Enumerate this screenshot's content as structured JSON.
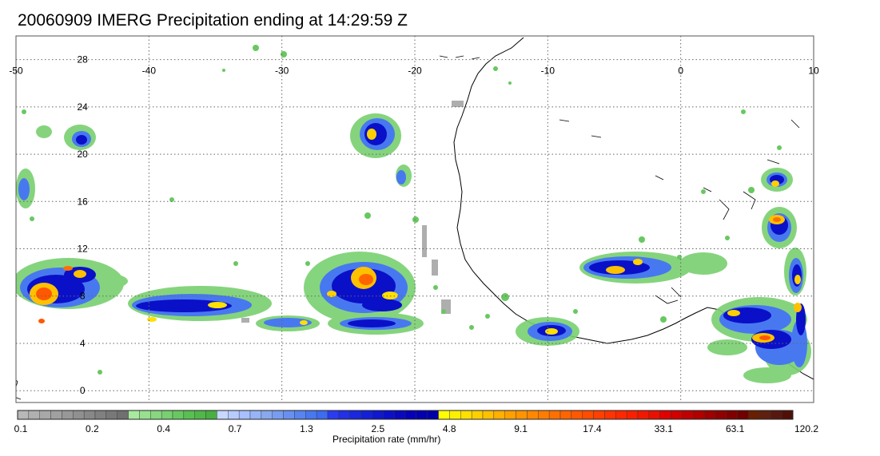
{
  "title": "20060909 IMERG Precipitation ending at 14:29:59 Z",
  "map": {
    "lon_range": [
      -50,
      10
    ],
    "lat_range": [
      -1,
      30
    ],
    "lon_ticks": [
      "-50",
      "-40",
      "-30",
      "-20",
      "-10",
      "0",
      "10"
    ],
    "lat_ticks": [
      "28",
      "24",
      "20",
      "16",
      "12",
      "8",
      "4",
      "0"
    ],
    "grid": "dotted",
    "coastline": "West Africa"
  },
  "colorbar": {
    "title": "Precipitation rate (mm/hr)",
    "labels": [
      "0.1",
      "0.2",
      "0.4",
      "0.7",
      "1.3",
      "2.5",
      "4.8",
      "9.1",
      "17.4",
      "33.1",
      "63.1",
      "120.2"
    ],
    "colors": [
      "#b8b8b8",
      "#b0b0b0",
      "#a8a8a8",
      "#a0a0a0",
      "#989898",
      "#909090",
      "#888888",
      "#808080",
      "#787878",
      "#707070",
      "#a8e8a0",
      "#98e090",
      "#88d880",
      "#78d070",
      "#68c860",
      "#58c050",
      "#50b848",
      "#48b040",
      "#c8d8ff",
      "#b8ccff",
      "#a8c0ff",
      "#98b4f8",
      "#88a8f0",
      "#789cf0",
      "#6890f0",
      "#5884f0",
      "#4878f0",
      "#3c6cf0",
      "#2a3cf0",
      "#2230e8",
      "#1a28e0",
      "#1420d8",
      "#0e18d0",
      "#0a10c8",
      "#0808c0",
      "#0600b8",
      "#0400b0",
      "#0000a8",
      "#ffff00",
      "#fff000",
      "#ffe000",
      "#ffd000",
      "#ffc000",
      "#ffb000",
      "#ffa000",
      "#ff9400",
      "#ff8800",
      "#ff7c00",
      "#ff7000",
      "#ff6400",
      "#ff5800",
      "#ff4c00",
      "#ff4000",
      "#ff3400",
      "#ff2800",
      "#f82000",
      "#f01800",
      "#e81000",
      "#e00000",
      "#d00000",
      "#c00000",
      "#b00000",
      "#a00000",
      "#900000",
      "#800000",
      "#700000",
      "#682000",
      "#602010",
      "#581810",
      "#501008"
    ]
  }
}
